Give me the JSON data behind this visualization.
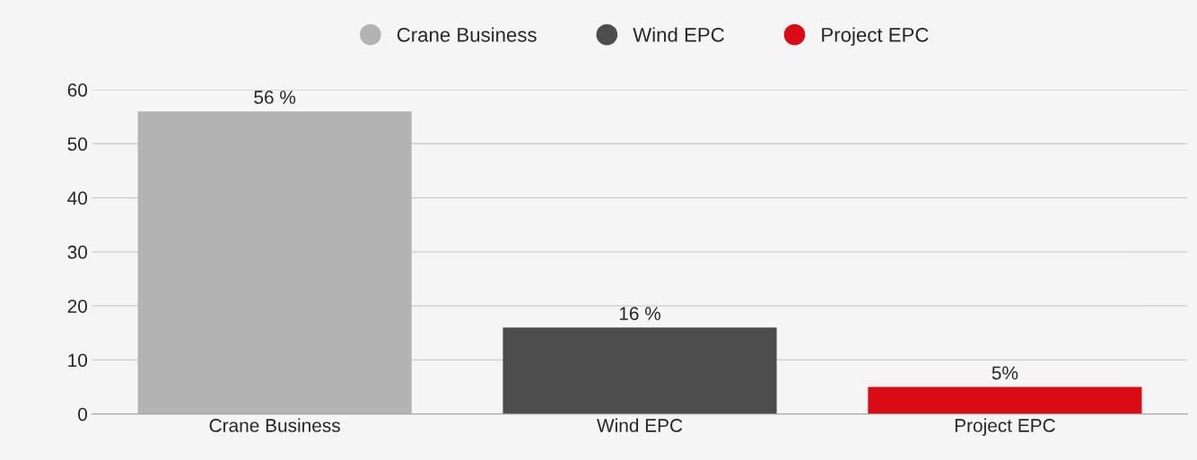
{
  "chart_data": {
    "type": "bar",
    "categories": [
      "Crane Business",
      "Wind EPC",
      "Project EPC"
    ],
    "series": [
      {
        "name": "Crane Business",
        "color": "#b3b3b3",
        "values": [
          56,
          null,
          null
        ],
        "value_labels": [
          "56 %",
          null,
          null
        ]
      },
      {
        "name": "Wind EPC",
        "color": "#4d4d4d",
        "values": [
          null,
          16,
          null
        ],
        "value_labels": [
          null,
          "16 %",
          null
        ]
      },
      {
        "name": "Project EPC",
        "color": "#d90b14",
        "values": [
          null,
          null,
          5
        ],
        "value_labels": [
          null,
          null,
          "5%"
        ]
      }
    ],
    "stacked": true,
    "ylim": [
      0,
      60
    ],
    "yticks": [
      0,
      10,
      20,
      30,
      40,
      50,
      60
    ],
    "grid": "y",
    "legend": "top"
  }
}
